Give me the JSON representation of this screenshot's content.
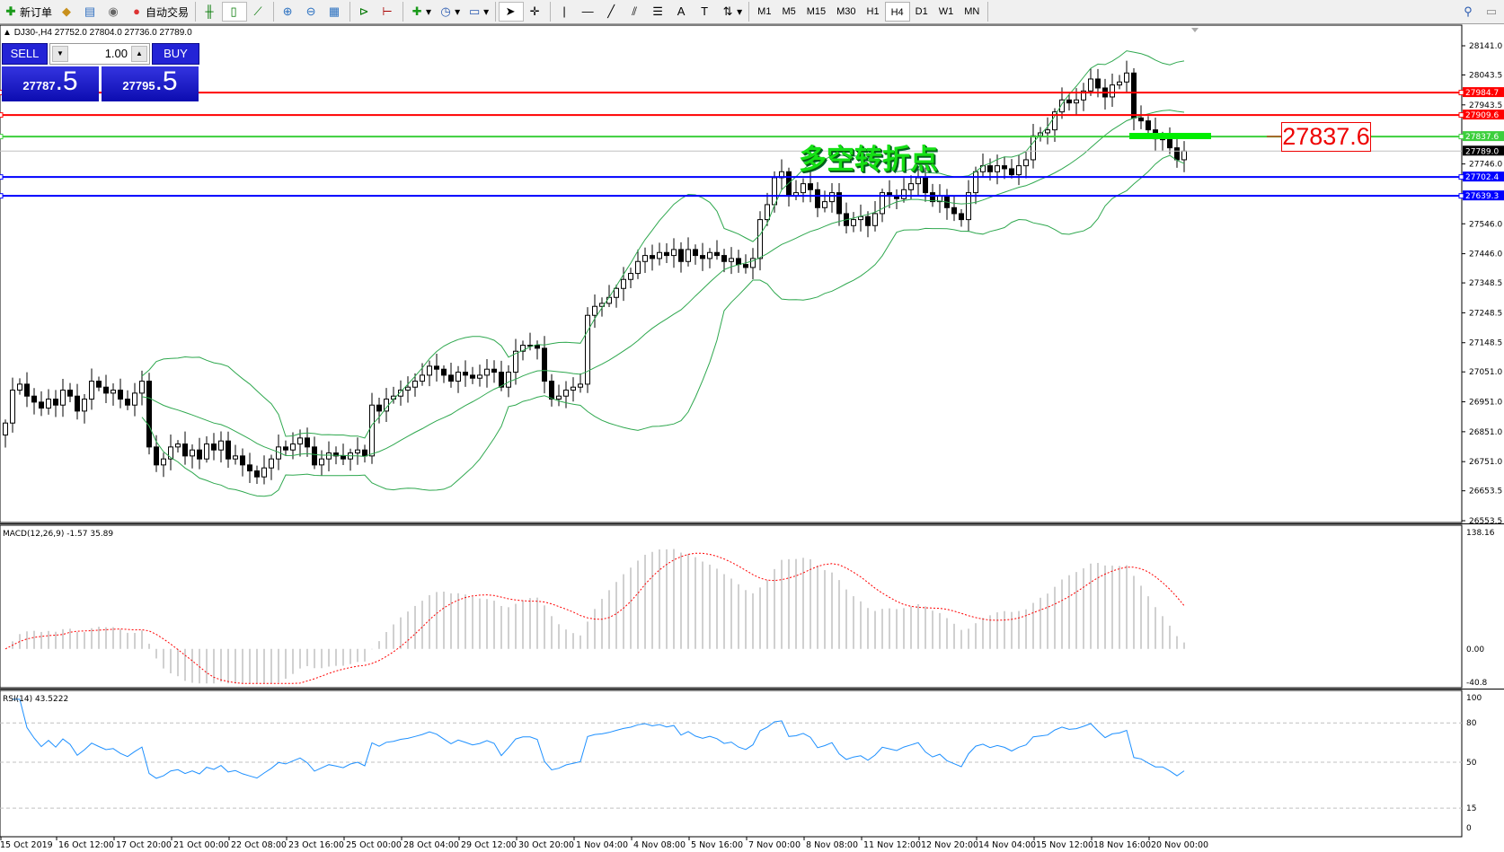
{
  "toolbar": {
    "new_order": "新订单",
    "auto_trading": "自动交易",
    "timeframes": [
      "M1",
      "M5",
      "M15",
      "M30",
      "H1",
      "H4",
      "D1",
      "W1",
      "MN"
    ],
    "active_timeframe": "H4"
  },
  "chart_header": "DJ30-,H4  27752.0 27804.0 27736.0 27789.0",
  "trade_panel": {
    "sell_label": "SELL",
    "buy_label": "BUY",
    "lot": "1.00",
    "sell_price_main": "27787",
    "sell_price_frac": ".5",
    "buy_price_main": "27795",
    "buy_price_frac": ".5"
  },
  "annotation_text": "多空转折点",
  "annotation_price": "27837.6",
  "colors": {
    "red_line": "#ff0000",
    "green_line": "#3ccf3c",
    "blue_line": "#0000ff",
    "band": "#2fa84f",
    "rsi": "#1e90ff",
    "macd_signal": "#ff0000",
    "macd_hist": "#c0c0c0"
  },
  "price_axis": [
    "28141.0",
    "28043.5",
    "27943.5",
    "27746.0",
    "27546.0",
    "27446.0",
    "27348.5",
    "27248.5",
    "27148.5",
    "27051.0",
    "26951.0",
    "26851.0",
    "26751.0",
    "26653.5",
    "26553.5"
  ],
  "levels": [
    {
      "price": "27984.7",
      "color": "#ff0000",
      "label_bg": "#ff0000"
    },
    {
      "price": "27909.6",
      "color": "#ff0000",
      "label_bg": "#ff0000"
    },
    {
      "price": "27837.6",
      "color": "#3ccf3c",
      "label_bg": "#3ccf3c"
    },
    {
      "price": "27789.0",
      "color": "#c0c0c0",
      "label_bg": "#000000"
    },
    {
      "price": "27702.4",
      "color": "#0000ff",
      "label_bg": "#0000ff"
    },
    {
      "price": "27639.3",
      "color": "#0000ff",
      "label_bg": "#0000ff"
    }
  ],
  "macd": {
    "label": "MACD(12,26,9) -1.57 35.89",
    "axis": [
      "138.16",
      "0.00",
      "-40.8"
    ]
  },
  "rsi": {
    "label": "RSI(14) 43.5222",
    "axis": [
      "100",
      "80",
      "50",
      "15",
      "0"
    ],
    "levels": [
      80,
      50,
      15
    ]
  },
  "time_axis": [
    "15 Oct 2019",
    "16 Oct 12:00",
    "17 Oct 20:00",
    "21 Oct 00:00",
    "22 Oct 08:00",
    "23 Oct 16:00",
    "25 Oct 00:00",
    "28 Oct 04:00",
    "29 Oct 12:00",
    "30 Oct 20:00",
    "1 Nov 04:00",
    "4 Nov 08:00",
    "5 Nov 16:00",
    "7 Nov 00:00",
    "8 Nov 08:00",
    "11 Nov 12:00",
    "12 Nov 20:00",
    "14 Nov 04:00",
    "15 Nov 12:00",
    "18 Nov 16:00",
    "20 Nov 00:00"
  ],
  "closes": [
    26880,
    26990,
    27010,
    26970,
    26950,
    26930,
    26960,
    26940,
    26990,
    26970,
    26920,
    26960,
    27020,
    27000,
    26980,
    26990,
    26960,
    26940,
    26980,
    27020,
    26800,
    26740,
    26760,
    26800,
    26810,
    26770,
    26790,
    26760,
    26810,
    26790,
    26820,
    26760,
    26770,
    26740,
    26720,
    26700,
    26730,
    26760,
    26800,
    26790,
    26810,
    26830,
    26800,
    26740,
    26760,
    26780,
    26770,
    26760,
    26780,
    26790,
    26770,
    26940,
    26920,
    26960,
    26970,
    26990,
    27000,
    27020,
    27040,
    27070,
    27060,
    27040,
    27020,
    27050,
    27040,
    27030,
    27040,
    27060,
    27050,
    27000,
    27050,
    27120,
    27140,
    27140,
    27130,
    27020,
    26960,
    26970,
    26990,
    27000,
    27010,
    27240,
    27270,
    27280,
    27300,
    27330,
    27360,
    27380,
    27420,
    27440,
    27430,
    27450,
    27440,
    27460,
    27420,
    27460,
    27440,
    27430,
    27450,
    27440,
    27420,
    27430,
    27410,
    27400,
    27430,
    27560,
    27610,
    27700,
    27720,
    27640,
    27650,
    27680,
    27660,
    27600,
    27620,
    27650,
    27580,
    27540,
    27560,
    27570,
    27540,
    27580,
    27650,
    27640,
    27630,
    27660,
    27680,
    27700,
    27650,
    27620,
    27640,
    27600,
    27580,
    27560,
    27650,
    27720,
    27740,
    27720,
    27740,
    27730,
    27710,
    27740,
    27760,
    27840,
    27850,
    27860,
    27920,
    27960,
    27950,
    27960,
    27990,
    28030,
    28000,
    27970,
    28010,
    28020,
    28050,
    27900,
    27890,
    27860,
    27830,
    27830,
    27800,
    27760,
    27789
  ]
}
